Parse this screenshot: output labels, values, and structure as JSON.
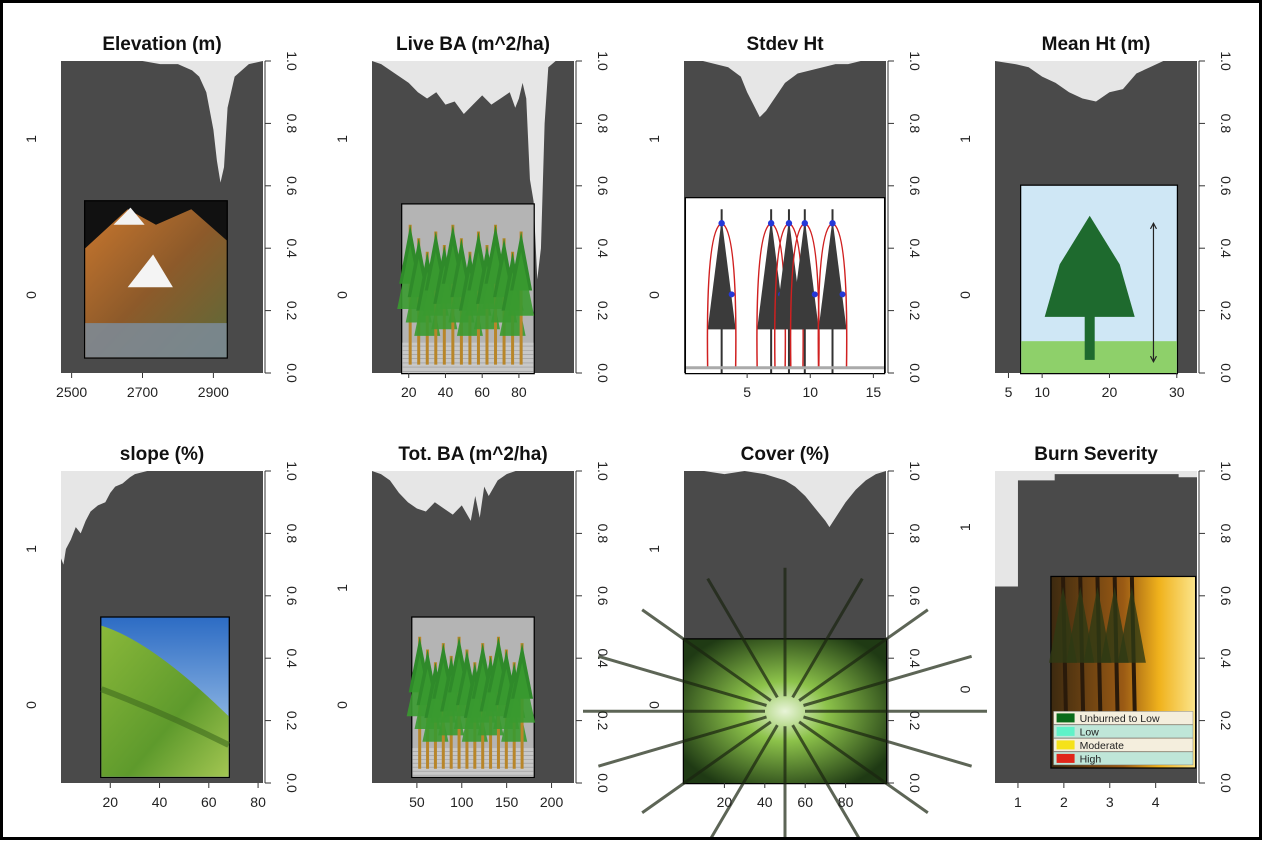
{
  "colors": {
    "background": "#ffffff",
    "plot_fill": "#4a4a4a",
    "curve_fill": "#e6e6e6",
    "frame": "#000000"
  },
  "chart_data": [
    {
      "type": "area",
      "title": "Elevation (m)",
      "x_ticks": [
        2500,
        2700,
        2900
      ],
      "xlim": [
        2470,
        3040
      ],
      "left_ticks": [
        "1",
        "0"
      ],
      "left_tick_values": [
        0.75,
        0.25
      ],
      "right_ticks": [
        "0.0",
        "0.2",
        "0.4",
        "0.6",
        "0.8",
        "1.0"
      ],
      "ylim": [
        0,
        1
      ],
      "x": [
        2470,
        2550,
        2600,
        2650,
        2700,
        2750,
        2800,
        2820,
        2840,
        2860,
        2880,
        2900,
        2910,
        2920,
        2930,
        2940,
        2960,
        2980,
        3000,
        3040
      ],
      "y": [
        1.0,
        1.0,
        1.0,
        1.0,
        1.0,
        0.99,
        0.99,
        0.98,
        0.97,
        0.95,
        0.9,
        0.78,
        0.68,
        0.61,
        0.66,
        0.85,
        0.95,
        0.97,
        0.99,
        1.0
      ],
      "inset": {
        "icon": "mountain-terrain-image",
        "x0": 0.12,
        "x1": 0.82,
        "y0": 0.05,
        "y1": 0.55
      }
    },
    {
      "type": "area",
      "title": "Live BA (m^2/ha)",
      "x_ticks": [
        20,
        40,
        60,
        80
      ],
      "xlim": [
        0,
        110
      ],
      "left_ticks": [
        "1",
        "0"
      ],
      "left_tick_values": [
        0.75,
        0.25
      ],
      "right_ticks": [
        "0.0",
        "0.2",
        "0.4",
        "0.6",
        "0.8",
        "1.0"
      ],
      "ylim": [
        0,
        1
      ],
      "x": [
        0,
        5,
        10,
        15,
        20,
        25,
        30,
        35,
        40,
        45,
        50,
        55,
        60,
        65,
        70,
        75,
        78,
        80,
        82,
        84,
        86,
        88,
        90,
        92,
        94,
        96,
        100,
        105,
        110
      ],
      "y": [
        1.0,
        0.99,
        0.97,
        0.95,
        0.93,
        0.9,
        0.88,
        0.9,
        0.86,
        0.87,
        0.83,
        0.86,
        0.89,
        0.86,
        0.88,
        0.9,
        0.85,
        0.88,
        0.93,
        0.88,
        0.62,
        0.55,
        0.3,
        0.4,
        0.8,
        0.98,
        1.0,
        1.0,
        1.0
      ],
      "inset": {
        "icon": "tree-stand-image",
        "x0": 0.15,
        "x1": 0.8,
        "y0": 0.0,
        "y1": 0.54
      }
    },
    {
      "type": "area",
      "title": "Stdev Ht",
      "x_ticks": [
        5,
        10,
        15
      ],
      "xlim": [
        0,
        16
      ],
      "left_ticks": [
        "1",
        "0"
      ],
      "left_tick_values": [
        0.75,
        0.25
      ],
      "right_ticks": [
        "0.0",
        "0.2",
        "0.4",
        "0.6",
        "0.8",
        "1.0"
      ],
      "ylim": [
        0,
        1
      ],
      "x": [
        0,
        1.5,
        2.5,
        3.5,
        4.5,
        5.0,
        5.5,
        6.0,
        6.5,
        7.0,
        7.5,
        8.0,
        9.0,
        10,
        11,
        12,
        13,
        14,
        15,
        16
      ],
      "y": [
        1.0,
        1.0,
        0.99,
        0.98,
        0.95,
        0.9,
        0.86,
        0.82,
        0.84,
        0.87,
        0.9,
        0.93,
        0.96,
        0.97,
        0.98,
        0.99,
        0.99,
        1.0,
        1.0,
        1.0
      ],
      "inset": {
        "icon": "tree-profile-image",
        "x0": 0.01,
        "x1": 0.99,
        "y0": 0.0,
        "y1": 0.56
      }
    },
    {
      "type": "area",
      "title": "Mean Ht (m)",
      "x_ticks": [
        5,
        10,
        20,
        30
      ],
      "xlim": [
        3,
        33
      ],
      "left_ticks": [
        "1",
        "0"
      ],
      "left_tick_values": [
        0.75,
        0.25
      ],
      "right_ticks": [
        "0.0",
        "0.2",
        "0.4",
        "0.6",
        "0.8",
        "1.0"
      ],
      "ylim": [
        0,
        1
      ],
      "x": [
        3,
        6,
        8,
        10,
        12,
        14,
        16,
        18,
        20,
        22,
        24,
        26,
        28,
        30,
        33
      ],
      "y": [
        1.0,
        0.99,
        0.98,
        0.95,
        0.93,
        0.9,
        0.88,
        0.87,
        0.9,
        0.91,
        0.96,
        0.98,
        1.0,
        1.0,
        1.0
      ],
      "inset": {
        "icon": "single-tree-image",
        "x0": 0.13,
        "x1": 0.9,
        "y0": 0.0,
        "y1": 0.6
      }
    },
    {
      "type": "area",
      "title": "slope (%)",
      "x_ticks": [
        20,
        40,
        60,
        80
      ],
      "xlim": [
        0,
        82
      ],
      "left_ticks": [
        "1",
        "0"
      ],
      "left_tick_values": [
        0.75,
        0.25
      ],
      "right_ticks": [
        "0.0",
        "0.2",
        "0.4",
        "0.6",
        "0.8",
        "1.0"
      ],
      "ylim": [
        0,
        1
      ],
      "x": [
        0,
        1,
        2,
        4,
        6,
        8,
        10,
        12,
        15,
        18,
        20,
        22,
        25,
        28,
        30,
        35,
        40,
        50,
        60,
        70,
        82
      ],
      "y": [
        0.72,
        0.7,
        0.75,
        0.78,
        0.82,
        0.8,
        0.84,
        0.87,
        0.89,
        0.9,
        0.93,
        0.95,
        0.96,
        0.98,
        0.99,
        1.0,
        1.0,
        1.0,
        1.0,
        1.0,
        1.0
      ],
      "inset": {
        "icon": "hillside-image",
        "x0": 0.2,
        "x1": 0.83,
        "y0": 0.02,
        "y1": 0.53
      }
    },
    {
      "type": "area",
      "title": "Tot. BA (m^2/ha)",
      "x_ticks": [
        50,
        100,
        150,
        200
      ],
      "xlim": [
        0,
        225
      ],
      "left_ticks": [
        "1",
        "0"
      ],
      "left_tick_values": [
        0.625,
        0.25
      ],
      "right_ticks": [
        "0.0",
        "0.2",
        "0.4",
        "0.6",
        "0.8",
        "1.0"
      ],
      "ylim": [
        0,
        1
      ],
      "x": [
        0,
        10,
        20,
        30,
        40,
        50,
        60,
        70,
        80,
        90,
        100,
        110,
        115,
        120,
        125,
        130,
        140,
        150,
        160,
        170,
        180,
        190,
        200,
        225
      ],
      "y": [
        1.0,
        0.99,
        0.97,
        0.93,
        0.9,
        0.88,
        0.87,
        0.9,
        0.88,
        0.86,
        0.89,
        0.84,
        0.92,
        0.85,
        0.95,
        0.92,
        0.97,
        0.99,
        1.0,
        1.0,
        1.0,
        1.0,
        1.0,
        1.0
      ],
      "inset": {
        "icon": "tree-stand-image",
        "x0": 0.2,
        "x1": 0.8,
        "y0": 0.02,
        "y1": 0.53
      }
    },
    {
      "type": "area",
      "title": "Cover (%)",
      "x_ticks": [
        20,
        40,
        60,
        80
      ],
      "xlim": [
        0,
        100
      ],
      "left_ticks": [
        "1",
        "0"
      ],
      "left_tick_values": [
        0.75,
        0.25
      ],
      "right_ticks": [
        "0.0",
        "0.2",
        "0.4",
        "0.6",
        "0.8",
        "1.0"
      ],
      "ylim": [
        0,
        1
      ],
      "x": [
        0,
        10,
        20,
        30,
        40,
        50,
        55,
        60,
        65,
        70,
        72,
        75,
        80,
        85,
        90,
        95,
        100
      ],
      "y": [
        1.0,
        1.0,
        0.99,
        1.0,
        0.99,
        0.97,
        0.95,
        0.92,
        0.88,
        0.84,
        0.82,
        0.85,
        0.9,
        0.94,
        0.97,
        0.99,
        1.0
      ],
      "inset": {
        "icon": "canopy-image",
        "x0": 0.0,
        "x1": 1.0,
        "y0": 0.0,
        "y1": 0.46
      }
    },
    {
      "type": "area",
      "title": "Burn Severity",
      "x_ticks": [
        1,
        2,
        3,
        4
      ],
      "xlim": [
        0.5,
        4.9
      ],
      "left_ticks": [
        "1",
        "0"
      ],
      "left_tick_values": [
        0.82,
        0.3
      ],
      "right_ticks": [
        "0.0",
        "0.2",
        "0.4",
        "0.6",
        "0.8",
        "1.0"
      ],
      "ylim": [
        0,
        1
      ],
      "step": true,
      "x": [
        0.5,
        1.0,
        1.0,
        1.8,
        1.8,
        4.5,
        4.5,
        4.9
      ],
      "y": [
        0.63,
        0.63,
        0.97,
        0.97,
        0.99,
        0.99,
        0.98,
        0.98
      ],
      "inset": {
        "icon": "forest-fire-image",
        "x0": 0.28,
        "x1": 0.99,
        "y0": 0.05,
        "y1": 0.66
      },
      "legend": [
        {
          "label": "Unburned to Low",
          "color": "#0a6b1a"
        },
        {
          "label": "Low",
          "color": "#5ff2c8"
        },
        {
          "label": "Moderate",
          "color": "#f5e21a"
        },
        {
          "label": "High",
          "color": "#e0261a"
        }
      ]
    }
  ]
}
